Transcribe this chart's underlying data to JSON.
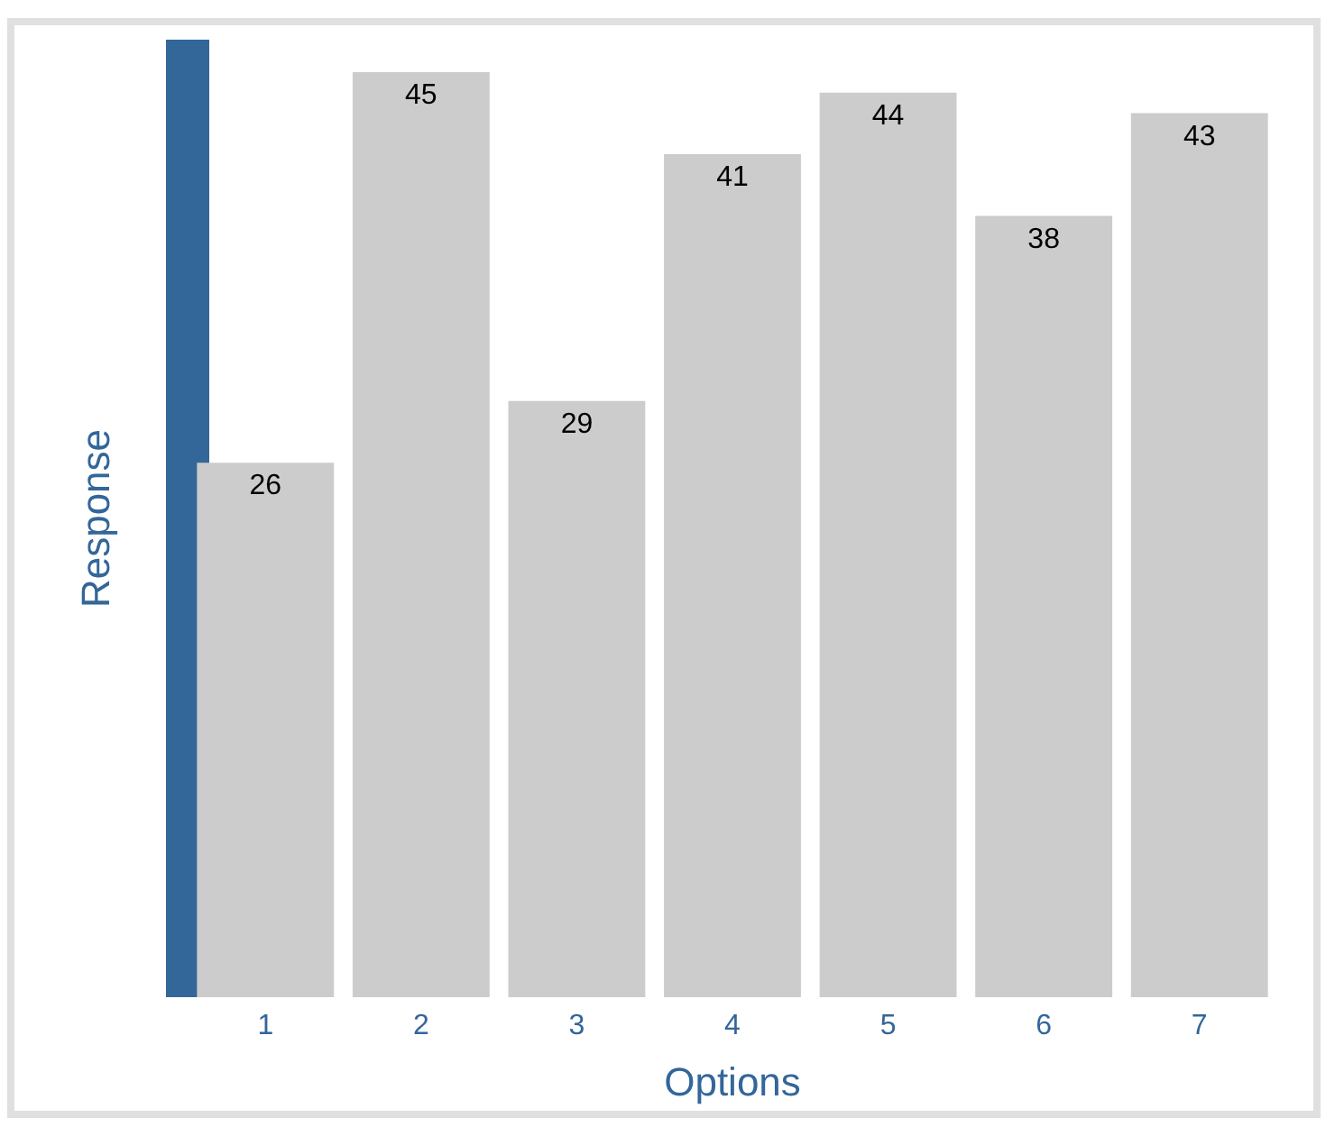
{
  "chart_data": {
    "type": "bar",
    "xlabel": "Options",
    "ylabel": "Response",
    "categories": [
      "1",
      "2",
      "3",
      "4",
      "5",
      "6",
      "7"
    ],
    "values": [
      26,
      45,
      29,
      41,
      44,
      38,
      43
    ],
    "color": "#cccccc",
    "data_labels": true,
    "tick_labels": "x"
  }
}
